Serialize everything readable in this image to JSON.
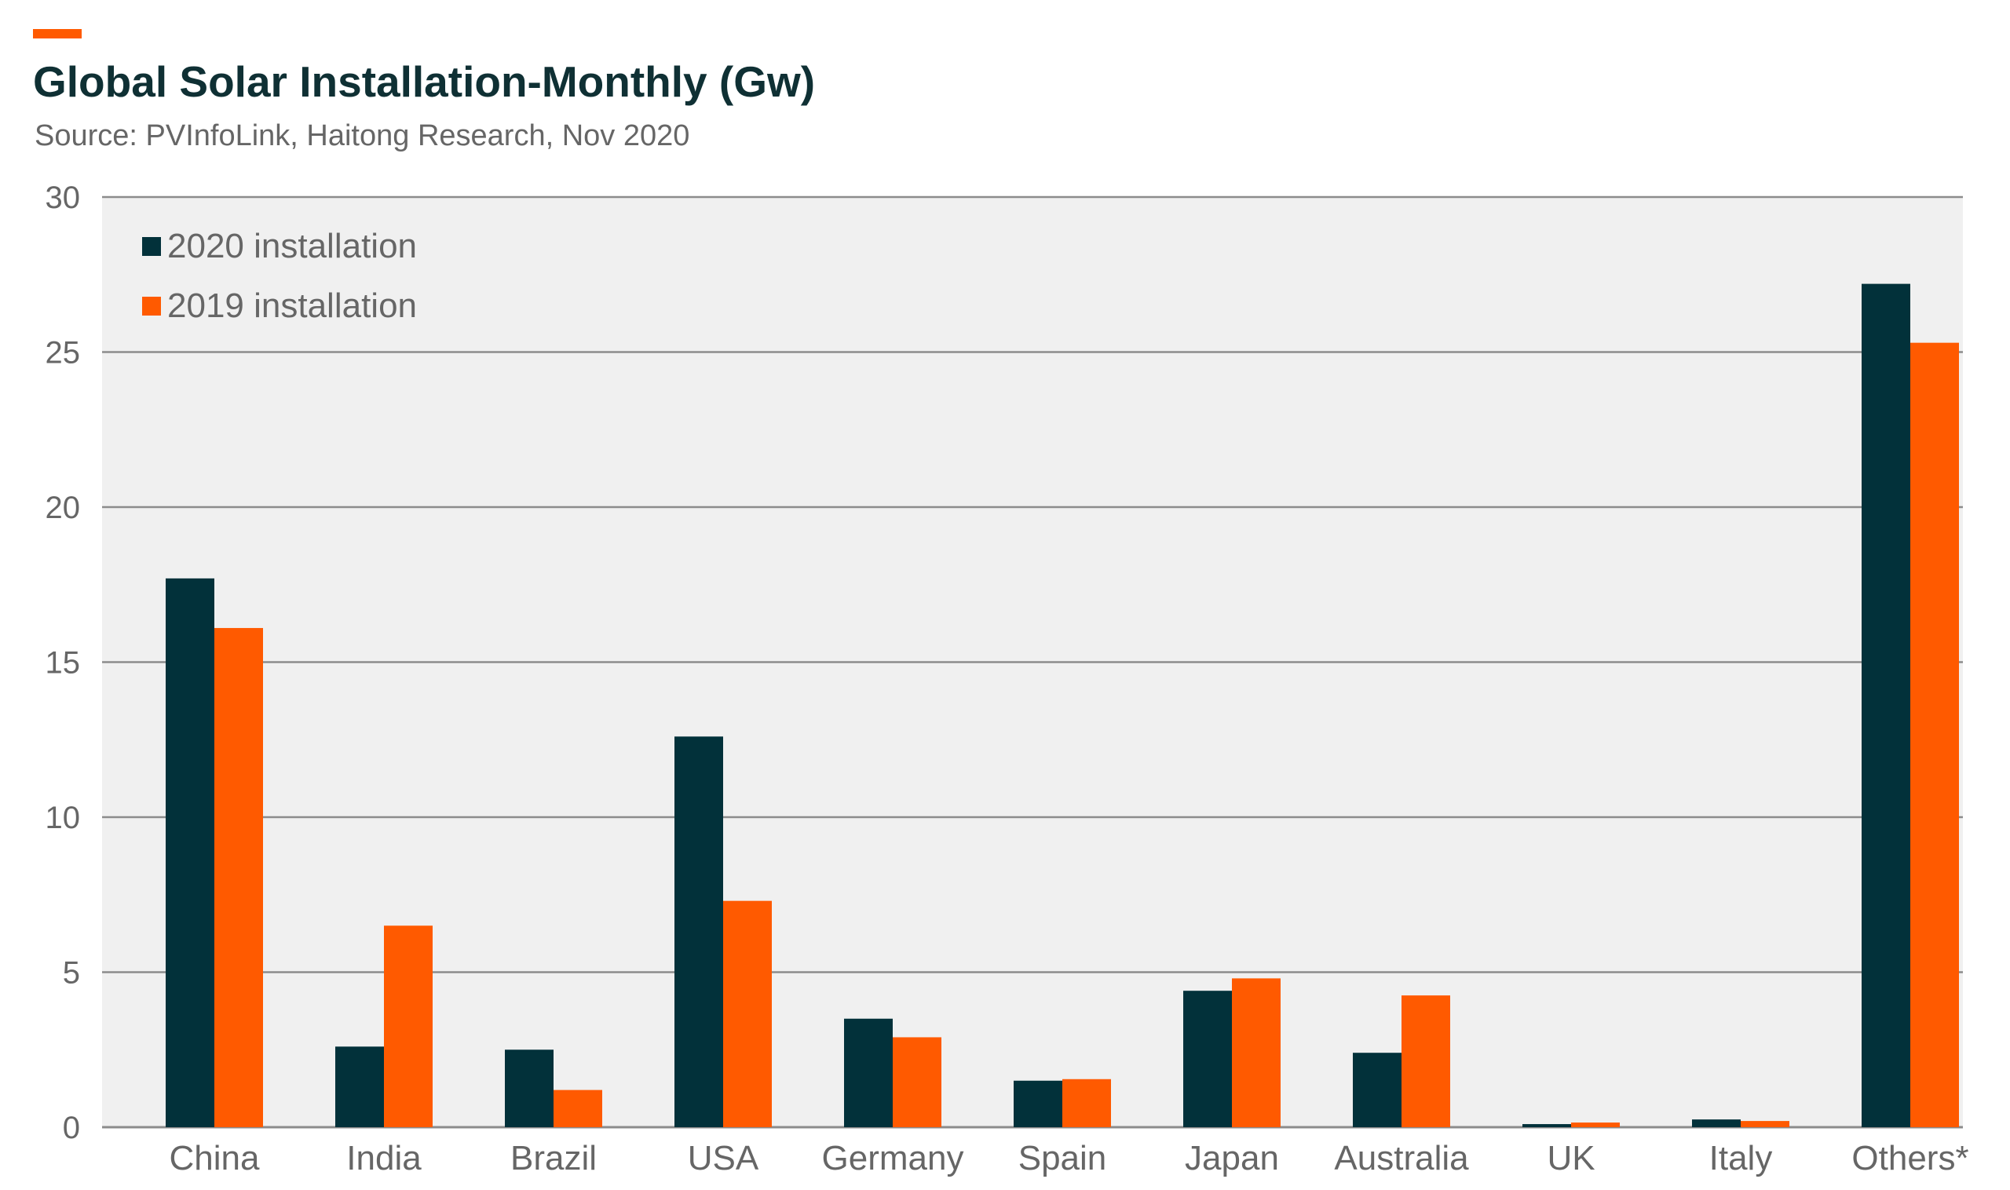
{
  "header": {
    "title": "Global Solar Installation-Monthly (Gw)",
    "source": "Source: PVInfoLink, Haitong Research, Nov 2020"
  },
  "colors": {
    "accent": "#ff5a00",
    "series_2020": "#02313a",
    "series_2019": "#ff5a00",
    "plot_background": "#f0f0f0",
    "gridline": "#8c8c8c",
    "text": "#666666",
    "title": "#0f3034"
  },
  "chart_data": {
    "type": "bar",
    "title": "Global Solar Installation-Monthly (Gw)",
    "subtitle": "Source: PVInfoLink, Haitong Research, Nov 2020",
    "xlabel": "",
    "ylabel": "",
    "categories": [
      "China",
      "India",
      "Brazil",
      "USA",
      "Germany",
      "Spain",
      "Japan",
      "Australia",
      "UK",
      "Italy",
      "Others*"
    ],
    "series": [
      {
        "name": "2020 installation",
        "color": "#02313a",
        "values": [
          17.7,
          2.6,
          2.5,
          12.6,
          3.5,
          1.5,
          4.4,
          2.4,
          0.1,
          0.25,
          27.2
        ]
      },
      {
        "name": "2019 installation",
        "color": "#ff5a00",
        "values": [
          16.1,
          6.5,
          1.2,
          7.3,
          2.9,
          1.55,
          4.8,
          4.25,
          0.15,
          0.2,
          25.3
        ]
      }
    ],
    "ylim": [
      0,
      30
    ],
    "yticks": [
      0,
      5,
      10,
      15,
      20,
      25,
      30
    ],
    "grid": true,
    "legend_position": "top-left"
  }
}
